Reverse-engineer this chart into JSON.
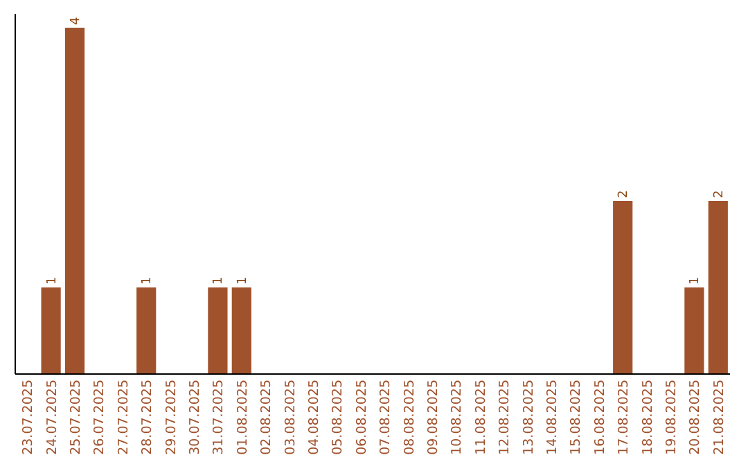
{
  "chart_data": {
    "type": "bar",
    "categories": [
      "23.07.2025",
      "24.07.2025",
      "25.07.2025",
      "26.07.2025",
      "27.07.2025",
      "28.07.2025",
      "29.07.2025",
      "30.07.2025",
      "31.07.2025",
      "01.08.2025",
      "02.08.2025",
      "03.08.2025",
      "04.08.2025",
      "05.08.2025",
      "06.08.2025",
      "07.08.2025",
      "08.08.2025",
      "09.08.2025",
      "10.08.2025",
      "11.08.2025",
      "12.08.2025",
      "13.08.2025",
      "14.08.2025",
      "15.08.2025",
      "16.08.2025",
      "17.08.2025",
      "18.08.2025",
      "19.08.2025",
      "20.08.2025",
      "21.08.2025"
    ],
    "values": [
      0,
      1,
      4,
      0,
      0,
      1,
      0,
      0,
      1,
      1,
      0,
      0,
      0,
      0,
      0,
      0,
      0,
      0,
      0,
      0,
      0,
      0,
      0,
      0,
      0,
      2,
      0,
      0,
      1,
      2
    ],
    "value_labels": [
      null,
      "1",
      "4",
      null,
      null,
      "1",
      null,
      null,
      "1",
      "1",
      null,
      null,
      null,
      null,
      null,
      null,
      null,
      null,
      null,
      null,
      null,
      null,
      null,
      null,
      null,
      "2",
      null,
      null,
      "1",
      "2"
    ],
    "color": "#a0522d"
  }
}
